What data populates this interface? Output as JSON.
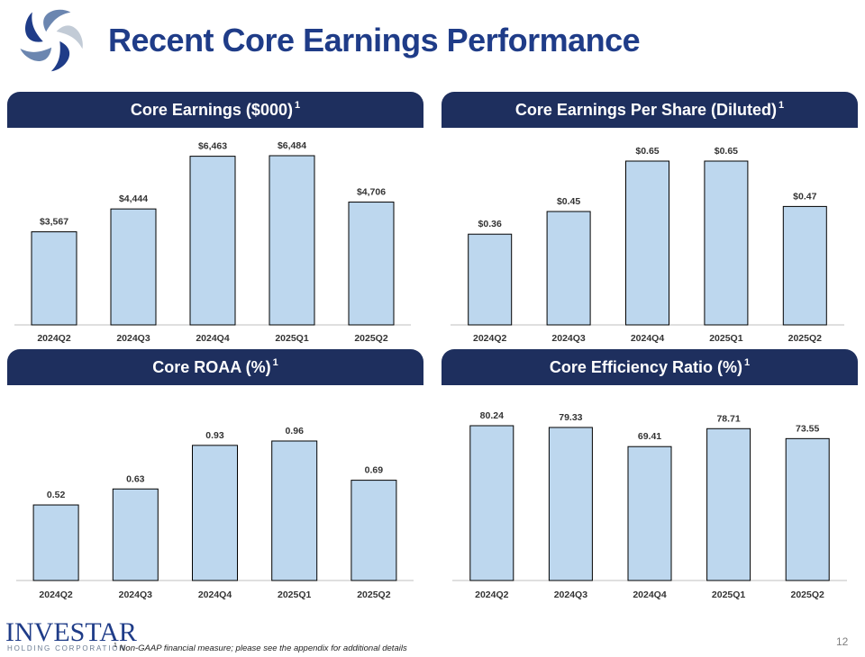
{
  "page": {
    "title": "Recent Core Earnings Performance",
    "page_number": "12",
    "footnote_marker": "1",
    "footnote": "Non-GAAP financial measure; please see the appendix  for additional details",
    "company": {
      "name": "INVESTAR",
      "subtitle": "HOLDING CORPORATION"
    }
  },
  "chart_data": [
    {
      "id": "core-earnings",
      "type": "bar",
      "title": "Core Earnings ($000)",
      "title_superscript": "1",
      "categories": [
        "2024Q2",
        "2024Q3",
        "2024Q4",
        "2025Q1",
        "2025Q2"
      ],
      "values": [
        3567,
        4444,
        6463,
        6484,
        4706
      ],
      "labels": [
        "$3,567",
        "$4,444",
        "$6,463",
        "$6,484",
        "$4,706"
      ],
      "ylim": [
        0,
        6484
      ]
    },
    {
      "id": "core-eps",
      "type": "bar",
      "title": "Core Earnings Per Share (Diluted)",
      "title_superscript": "1",
      "categories": [
        "2024Q2",
        "2024Q3",
        "2024Q4",
        "2025Q1",
        "2025Q2"
      ],
      "values": [
        0.36,
        0.45,
        0.65,
        0.65,
        0.47
      ],
      "labels": [
        "$0.36",
        "$0.45",
        "$0.65",
        "$0.65",
        "$0.47"
      ],
      "ylim": [
        0,
        0.65
      ]
    },
    {
      "id": "core-roaa",
      "type": "bar",
      "title": "Core ROAA (%)",
      "title_superscript": "1",
      "categories": [
        "2024Q2",
        "2024Q3",
        "2024Q4",
        "2025Q1",
        "2025Q2"
      ],
      "values": [
        0.52,
        0.63,
        0.93,
        0.96,
        0.69
      ],
      "labels": [
        "0.52",
        "0.63",
        "0.93",
        "0.96",
        "0.69"
      ],
      "ylim": [
        0,
        0.96
      ]
    },
    {
      "id": "core-efficiency",
      "type": "bar",
      "title": "Core Efficiency Ratio (%)",
      "title_superscript": "1",
      "categories": [
        "2024Q2",
        "2024Q3",
        "2024Q4",
        "2025Q1",
        "2025Q2"
      ],
      "values": [
        80.24,
        79.33,
        69.41,
        78.71,
        73.55
      ],
      "labels": [
        "80.24",
        "79.33",
        "69.41",
        "78.71",
        "73.55"
      ],
      "ylim": [
        0,
        80.24
      ]
    }
  ]
}
